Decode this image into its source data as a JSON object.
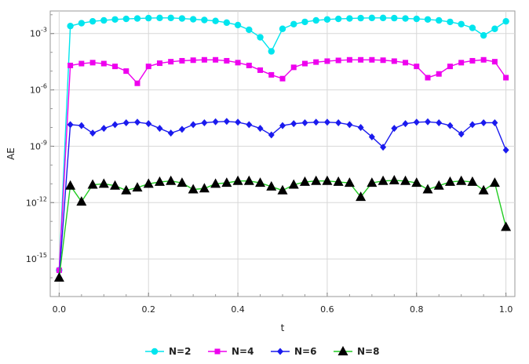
{
  "chart_data": {
    "type": "line",
    "xlabel": "t",
    "ylabel": "AE",
    "xlim": [
      -0.02,
      1.02
    ],
    "ylim_log10": [
      -17,
      -1.8
    ],
    "y_scale": "log",
    "grid": true,
    "legend_position": "bottom",
    "x_ticks": [
      "0.0",
      "0.2",
      "0.4",
      "0.6",
      "0.8",
      "1.0"
    ],
    "y_ticks": [
      {
        "base": "10",
        "exp": "-3"
      },
      {
        "base": "10",
        "exp": "-6"
      },
      {
        "base": "10",
        "exp": "-9"
      },
      {
        "base": "10",
        "exp": "-12"
      },
      {
        "base": "10",
        "exp": "-15"
      }
    ],
    "x": [
      0.0,
      0.025,
      0.05,
      0.075,
      0.1,
      0.125,
      0.15,
      0.175,
      0.2,
      0.225,
      0.25,
      0.275,
      0.3,
      0.325,
      0.35,
      0.375,
      0.4,
      0.425,
      0.45,
      0.475,
      0.5,
      0.525,
      0.55,
      0.575,
      0.6,
      0.625,
      0.65,
      0.675,
      0.7,
      0.725,
      0.75,
      0.775,
      0.8,
      0.825,
      0.85,
      0.875,
      0.9,
      0.925,
      0.95,
      0.975,
      1.0
    ],
    "series": [
      {
        "name": "N=2",
        "color": "#00e5ee",
        "marker": "circle",
        "log10_values": [
          -15.6,
          -2.6,
          -2.45,
          -2.35,
          -2.3,
          -2.25,
          -2.22,
          -2.2,
          -2.18,
          -2.17,
          -2.17,
          -2.2,
          -2.24,
          -2.28,
          -2.33,
          -2.42,
          -2.55,
          -2.8,
          -3.2,
          -3.95,
          -2.75,
          -2.5,
          -2.38,
          -2.3,
          -2.25,
          -2.22,
          -2.2,
          -2.18,
          -2.17,
          -2.17,
          -2.18,
          -2.2,
          -2.22,
          -2.25,
          -2.3,
          -2.38,
          -2.5,
          -2.7,
          -3.1,
          -2.75,
          -2.35
        ]
      },
      {
        "name": "N=4",
        "color": "#ee00ee",
        "marker": "square",
        "log10_values": [
          -15.6,
          -4.7,
          -4.6,
          -4.55,
          -4.6,
          -4.75,
          -5.0,
          -5.65,
          -4.75,
          -4.58,
          -4.5,
          -4.45,
          -4.42,
          -4.4,
          -4.4,
          -4.45,
          -4.55,
          -4.7,
          -4.95,
          -5.2,
          -5.4,
          -4.8,
          -4.6,
          -4.52,
          -4.47,
          -4.43,
          -4.4,
          -4.4,
          -4.4,
          -4.42,
          -4.47,
          -4.55,
          -4.75,
          -5.35,
          -5.15,
          -4.75,
          -4.55,
          -4.45,
          -4.4,
          -4.5,
          -5.35
        ]
      },
      {
        "name": "N=6",
        "color": "#1a1aee",
        "marker": "diamond",
        "log10_values": [
          -16.0,
          -7.85,
          -7.9,
          -8.3,
          -8.05,
          -7.85,
          -7.75,
          -7.72,
          -7.8,
          -8.05,
          -8.3,
          -8.1,
          -7.85,
          -7.75,
          -7.7,
          -7.68,
          -7.72,
          -7.85,
          -8.05,
          -8.4,
          -7.9,
          -7.8,
          -7.75,
          -7.72,
          -7.72,
          -7.75,
          -7.85,
          -8.0,
          -8.5,
          -9.05,
          -8.05,
          -7.8,
          -7.72,
          -7.7,
          -7.75,
          -7.9,
          -8.35,
          -7.85,
          -7.75,
          -7.75,
          -9.2
        ]
      },
      {
        "name": "N=8",
        "color": "#22cc22",
        "marker": "triangle",
        "log10_values": [
          -16.0,
          -11.1,
          -11.95,
          -11.05,
          -11.0,
          -11.1,
          -11.35,
          -11.2,
          -11.0,
          -10.9,
          -10.85,
          -10.95,
          -11.3,
          -11.25,
          -11.0,
          -10.95,
          -10.85,
          -10.85,
          -10.95,
          -11.15,
          -11.35,
          -11.05,
          -10.9,
          -10.85,
          -10.85,
          -10.9,
          -10.95,
          -11.7,
          -10.95,
          -10.85,
          -10.82,
          -10.85,
          -10.95,
          -11.3,
          -11.1,
          -10.9,
          -10.85,
          -10.9,
          -11.35,
          -10.95,
          -13.3
        ]
      }
    ]
  }
}
